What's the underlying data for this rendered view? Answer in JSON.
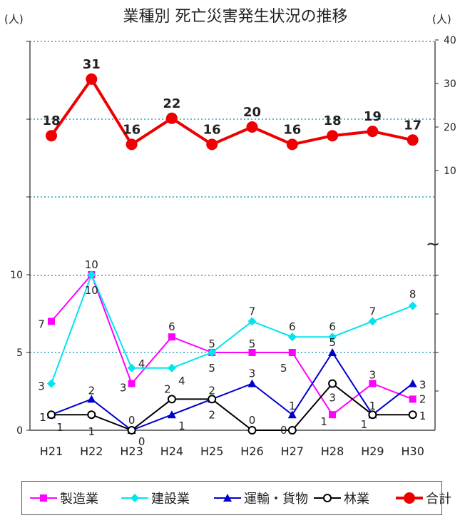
{
  "chart_data": {
    "type": "line",
    "title": "業種別 死亡災害発生状況の推移",
    "y_unit_left": "(人)",
    "y_unit_right": "(人)",
    "break_symbol": "~",
    "categories": [
      "H21",
      "H22",
      "H23",
      "H24",
      "H25",
      "H26",
      "H27",
      "H28",
      "H29",
      "H30"
    ],
    "lower_axis": {
      "ylim": [
        0,
        12.5
      ],
      "ticks": [
        0,
        5,
        10
      ]
    },
    "upper_axis": {
      "ylim": [
        0,
        40
      ],
      "ticks": [
        10,
        20,
        30,
        40
      ]
    },
    "series": [
      {
        "name": "製造業",
        "axis": "lower",
        "color": "#ff00ff",
        "marker": "square",
        "values": [
          7,
          10,
          3,
          6,
          5,
          5,
          5,
          1,
          3,
          2
        ]
      },
      {
        "name": "建設業",
        "axis": "lower",
        "color": "#00e5f0",
        "marker": "diamond",
        "values": [
          3,
          10,
          4,
          4,
          5,
          7,
          6,
          6,
          7,
          8
        ]
      },
      {
        "name": "運輸・貨物",
        "axis": "lower",
        "color": "#0000cc",
        "marker": "triangle",
        "values": [
          1,
          2,
          0,
          1,
          2,
          3,
          1,
          5,
          1,
          3
        ]
      },
      {
        "name": "林業",
        "axis": "lower",
        "color": "#000000",
        "marker": "circle-open",
        "values": [
          1,
          1,
          0,
          2,
          2,
          0,
          0,
          3,
          1,
          1
        ]
      },
      {
        "name": "合計",
        "axis": "upper",
        "color": "#ee0000",
        "marker": "circle",
        "values": [
          18,
          31,
          16,
          22,
          16,
          20,
          16,
          18,
          19,
          17
        ]
      }
    ],
    "grid": true,
    "legend_position": "bottom"
  }
}
